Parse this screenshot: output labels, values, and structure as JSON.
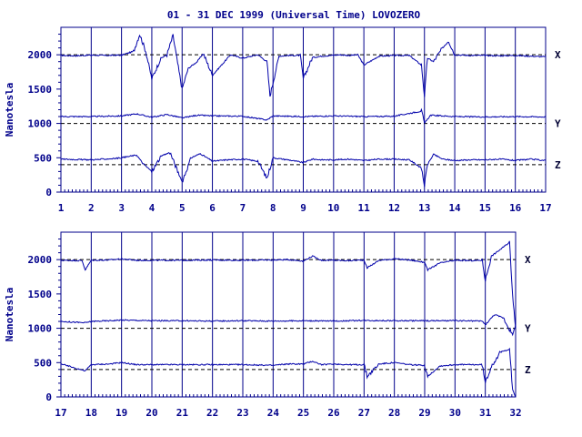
{
  "title": "01 - 31 DEC 1999 (Universal Time) LOVOZERO",
  "colors": {
    "axis": "#00008b",
    "trace": "#0000aa",
    "text": "#00008b",
    "background": "#ffffff"
  },
  "chart_data": [
    {
      "type": "line",
      "panel": "top",
      "ylabel": "Nanotesla",
      "xlabel": "",
      "xlim": [
        1,
        17
      ],
      "ylim": [
        0,
        2400
      ],
      "x_ticks": [
        "1",
        "2",
        "3",
        "4",
        "5",
        "6",
        "7",
        "8",
        "9",
        "10",
        "11",
        "12",
        "13",
        "14",
        "15",
        "16",
        "17"
      ],
      "y_ticks": [
        0,
        500,
        1000,
        1500,
        2000
      ],
      "grid": true,
      "baselines": [
        2000,
        1000,
        400
      ],
      "series": [
        {
          "name": "X",
          "baseline": 2000,
          "x": [
            1,
            1.5,
            2,
            2.5,
            3,
            3.4,
            3.6,
            3.8,
            4.0,
            4.3,
            4.5,
            4.7,
            4.9,
            5.0,
            5.2,
            5.5,
            5.7,
            6.0,
            6.3,
            6.6,
            7.0,
            7.5,
            7.8,
            7.9,
            8.2,
            8.5,
            8.9,
            9.0,
            9.3,
            9.6,
            9.9,
            10.2,
            10.5,
            10.8,
            11.0,
            11.5,
            12.0,
            12.5,
            12.9,
            13.0,
            13.1,
            13.3,
            13.6,
            13.8,
            14.0,
            14.5,
            15.0,
            15.5,
            16.0,
            16.5,
            17.0
          ],
          "y": [
            1990,
            1985,
            1995,
            1990,
            1995,
            2050,
            2300,
            2050,
            1650,
            1950,
            2000,
            2280,
            1750,
            1500,
            1800,
            1900,
            2020,
            1700,
            1850,
            2000,
            1950,
            2000,
            1900,
            1400,
            1980,
            1990,
            1990,
            1650,
            1960,
            1980,
            1990,
            2000,
            1990,
            2000,
            1850,
            1980,
            1990,
            1990,
            1850,
            1400,
            1950,
            1900,
            2100,
            2200,
            2000,
            1990,
            1990,
            1985,
            1990,
            1980,
            1970
          ]
        },
        {
          "name": "Y",
          "baseline": 1000,
          "x": [
            1,
            2,
            3,
            3.5,
            4,
            4.5,
            5,
            5.5,
            6,
            7,
            7.8,
            8,
            9,
            10,
            11,
            12,
            12.9,
            13,
            13.2,
            14,
            15,
            16,
            17
          ],
          "y": [
            1100,
            1100,
            1110,
            1140,
            1090,
            1130,
            1080,
            1120,
            1110,
            1105,
            1050,
            1110,
            1100,
            1110,
            1100,
            1105,
            1180,
            1000,
            1120,
            1100,
            1095,
            1100,
            1095
          ]
        },
        {
          "name": "Z",
          "baseline": 400,
          "x": [
            1,
            2,
            2.8,
            3,
            3.5,
            3.7,
            4,
            4.3,
            4.6,
            4.9,
            5.0,
            5.3,
            5.6,
            6,
            6.5,
            7,
            7.5,
            7.8,
            8,
            8.5,
            9,
            9.3,
            9.6,
            10,
            10.5,
            11,
            11.5,
            12,
            12.5,
            12.9,
            13,
            13.1,
            13.3,
            13.6,
            14,
            14.5,
            15,
            15.5,
            16,
            16.5,
            17
          ],
          "y": [
            480,
            470,
            490,
            500,
            540,
            420,
            300,
            520,
            580,
            250,
            150,
            500,
            560,
            450,
            470,
            480,
            450,
            200,
            500,
            470,
            430,
            480,
            470,
            470,
            480,
            460,
            480,
            480,
            470,
            350,
            100,
            400,
            550,
            480,
            460,
            470,
            470,
            480,
            460,
            480,
            460
          ]
        }
      ]
    },
    {
      "type": "line",
      "panel": "bottom",
      "ylabel": "Nanotesla",
      "xlabel": "",
      "xlim": [
        17,
        32
      ],
      "ylim": [
        0,
        2400
      ],
      "x_ticks": [
        "17",
        "18",
        "19",
        "20",
        "21",
        "22",
        "23",
        "24",
        "25",
        "26",
        "27",
        "28",
        "29",
        "30",
        "31",
        "32"
      ],
      "y_ticks": [
        0,
        500,
        1000,
        1500,
        2000
      ],
      "grid": true,
      "baselines": [
        2000,
        1000,
        400
      ],
      "series": [
        {
          "name": "X",
          "baseline": 2000,
          "x": [
            17,
            17.7,
            17.8,
            18.0,
            18.6,
            19,
            19.5,
            20,
            21,
            22,
            23,
            24,
            24.5,
            25,
            25.3,
            25.6,
            26,
            26.5,
            27,
            27.1,
            27.5,
            28,
            28.5,
            29,
            29.1,
            29.5,
            30,
            30.5,
            30.9,
            31.0,
            31.2,
            31.5,
            31.8,
            31.9,
            32.0
          ],
          "y": [
            1990,
            1985,
            1850,
            1990,
            1995,
            2010,
            1990,
            1990,
            1990,
            1995,
            1990,
            1995,
            2000,
            1980,
            2050,
            1990,
            1990,
            1985,
            1995,
            1880,
            1990,
            2010,
            1995,
            1960,
            1850,
            1950,
            1990,
            1985,
            1990,
            1700,
            2050,
            2150,
            2250,
            1500,
            1000
          ]
        },
        {
          "name": "Y",
          "baseline": 1000,
          "x": [
            17,
            17.8,
            18,
            18.6,
            19,
            20,
            21,
            22,
            23,
            24,
            25,
            26,
            27,
            28,
            29,
            30,
            30.9,
            31.0,
            31.3,
            31.6,
            31.9,
            32.0
          ],
          "y": [
            1100,
            1080,
            1100,
            1110,
            1120,
            1110,
            1110,
            1105,
            1110,
            1105,
            1110,
            1105,
            1115,
            1110,
            1110,
            1110,
            1105,
            1050,
            1200,
            1150,
            900,
            1050
          ]
        },
        {
          "name": "Z",
          "baseline": 400,
          "x": [
            17,
            17.8,
            18,
            18.6,
            19,
            19.5,
            20,
            21,
            22,
            23,
            24,
            24.5,
            25,
            25.3,
            25.6,
            26,
            26.5,
            27,
            27.1,
            27.5,
            28,
            28.5,
            29,
            29.1,
            29.5,
            30,
            30.9,
            31.0,
            31.2,
            31.5,
            31.8,
            31.9,
            32.0
          ],
          "y": [
            480,
            380,
            470,
            480,
            500,
            470,
            470,
            470,
            470,
            470,
            460,
            480,
            480,
            520,
            470,
            480,
            470,
            470,
            300,
            480,
            500,
            470,
            460,
            300,
            450,
            470,
            470,
            200,
            450,
            650,
            700,
            100,
            0
          ]
        }
      ]
    }
  ]
}
